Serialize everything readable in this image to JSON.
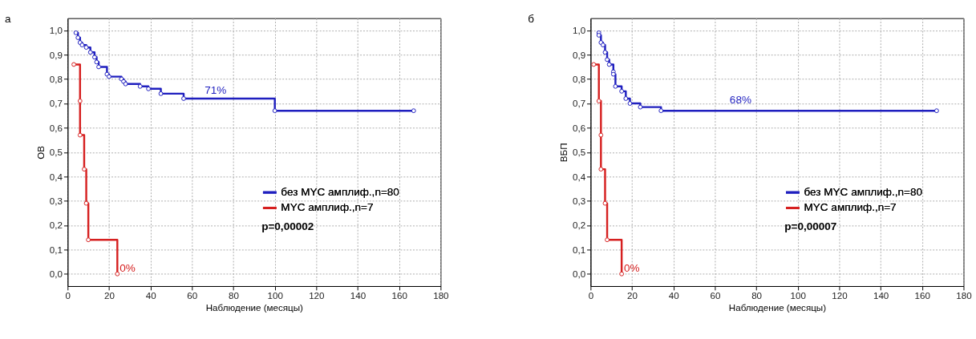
{
  "chart_data": [
    {
      "type": "step",
      "title": "а",
      "xlabel": "Наблюдение (месяцы)",
      "ylabel": "ОВ",
      "marker": "circle",
      "grid": true,
      "legend": "center right",
      "xlim": [
        0,
        180
      ],
      "xticks": [
        0,
        20,
        40,
        60,
        80,
        100,
        120,
        140,
        160,
        180
      ],
      "ylim": [
        -0.05,
        1.05
      ],
      "yticks": [
        {
          "value": 0,
          "label": "0,0"
        },
        {
          "value": 0.1,
          "label": "0,1"
        },
        {
          "value": 0.2,
          "label": "0,2"
        },
        {
          "value": 0.3,
          "label": "0,3"
        },
        {
          "value": 0.4,
          "label": "0,4"
        },
        {
          "value": 0.5,
          "label": "0,5"
        },
        {
          "value": 0.6,
          "label": "0,6"
        },
        {
          "value": 0.7,
          "label": "0,7"
        },
        {
          "value": 0.8,
          "label": "0,8"
        },
        {
          "value": 0.9,
          "label": "0,9"
        },
        {
          "value": 1,
          "label": "1,0"
        }
      ],
      "series": [
        {
          "name": "без MYC амплиф.,n=80",
          "color": "#1f1fbf",
          "x": [
            4,
            5,
            6,
            7,
            9,
            11,
            13,
            14,
            15,
            19,
            20,
            26,
            27,
            28,
            35,
            39,
            45,
            56,
            100,
            167
          ],
          "values": [
            0.99,
            0.97,
            0.95,
            0.94,
            0.93,
            0.91,
            0.89,
            0.87,
            0.85,
            0.82,
            0.81,
            0.8,
            0.79,
            0.78,
            0.77,
            0.76,
            0.74,
            0.72,
            0.67,
            0.67
          ]
        },
        {
          "name": "MYC амплиф.,n=7",
          "color": "#d62020",
          "x": [
            3,
            6,
            6,
            8,
            9,
            10,
            24
          ],
          "values": [
            0.86,
            0.71,
            0.57,
            0.43,
            0.29,
            0.14,
            0.0
          ]
        }
      ],
      "annotations": [
        {
          "text": "71%",
          "x": 65,
          "y": 0.73
        },
        {
          "text": "0%",
          "x": 24,
          "y": 0
        },
        "p=0,00002"
      ]
    },
    {
      "type": "step",
      "title": "б",
      "xlabel": "Наблюдение (месяцы)",
      "ylabel": "ВБП",
      "marker": "circle",
      "grid": true,
      "legend": "center right",
      "xlim": [
        0,
        180
      ],
      "xticks": [
        0,
        20,
        40,
        60,
        80,
        100,
        120,
        140,
        160,
        180
      ],
      "ylim": [
        -0.05,
        1.05
      ],
      "yticks": [
        {
          "value": 0,
          "label": "0,0"
        },
        {
          "value": 0.1,
          "label": "0,1"
        },
        {
          "value": 0.2,
          "label": "0,2"
        },
        {
          "value": 0.3,
          "label": "0,3"
        },
        {
          "value": 0.4,
          "label": "0,4"
        },
        {
          "value": 0.5,
          "label": "0,5"
        },
        {
          "value": 0.6,
          "label": "0,6"
        },
        {
          "value": 0.7,
          "label": "0,7"
        },
        {
          "value": 0.8,
          "label": "0,8"
        },
        {
          "value": 0.9,
          "label": "0,9"
        },
        {
          "value": 1,
          "label": "1,0"
        }
      ],
      "series": [
        {
          "name": "без MYC амплиф.,n=80",
          "color": "#1f1fbf",
          "x": [
            4,
            4,
            5,
            6,
            7,
            8,
            9,
            11,
            11,
            12,
            15,
            17,
            19,
            24,
            34,
            167
          ],
          "values": [
            0.99,
            0.98,
            0.95,
            0.94,
            0.91,
            0.88,
            0.86,
            0.83,
            0.82,
            0.77,
            0.75,
            0.72,
            0.7,
            0.685,
            0.67,
            0.67
          ]
        },
        {
          "name": "MYC амплиф.,n=7",
          "color": "#d62020",
          "x": [
            1.5,
            4,
            5,
            5,
            7,
            8,
            15
          ],
          "values": [
            0.86,
            0.71,
            0.57,
            0.43,
            0.29,
            0.14,
            0.0
          ]
        }
      ],
      "annotations": [
        {
          "text": "68%",
          "x": 66,
          "y": 0.69
        },
        {
          "text": "0%",
          "x": 15,
          "y": 0
        },
        "p=0,00007"
      ]
    }
  ]
}
